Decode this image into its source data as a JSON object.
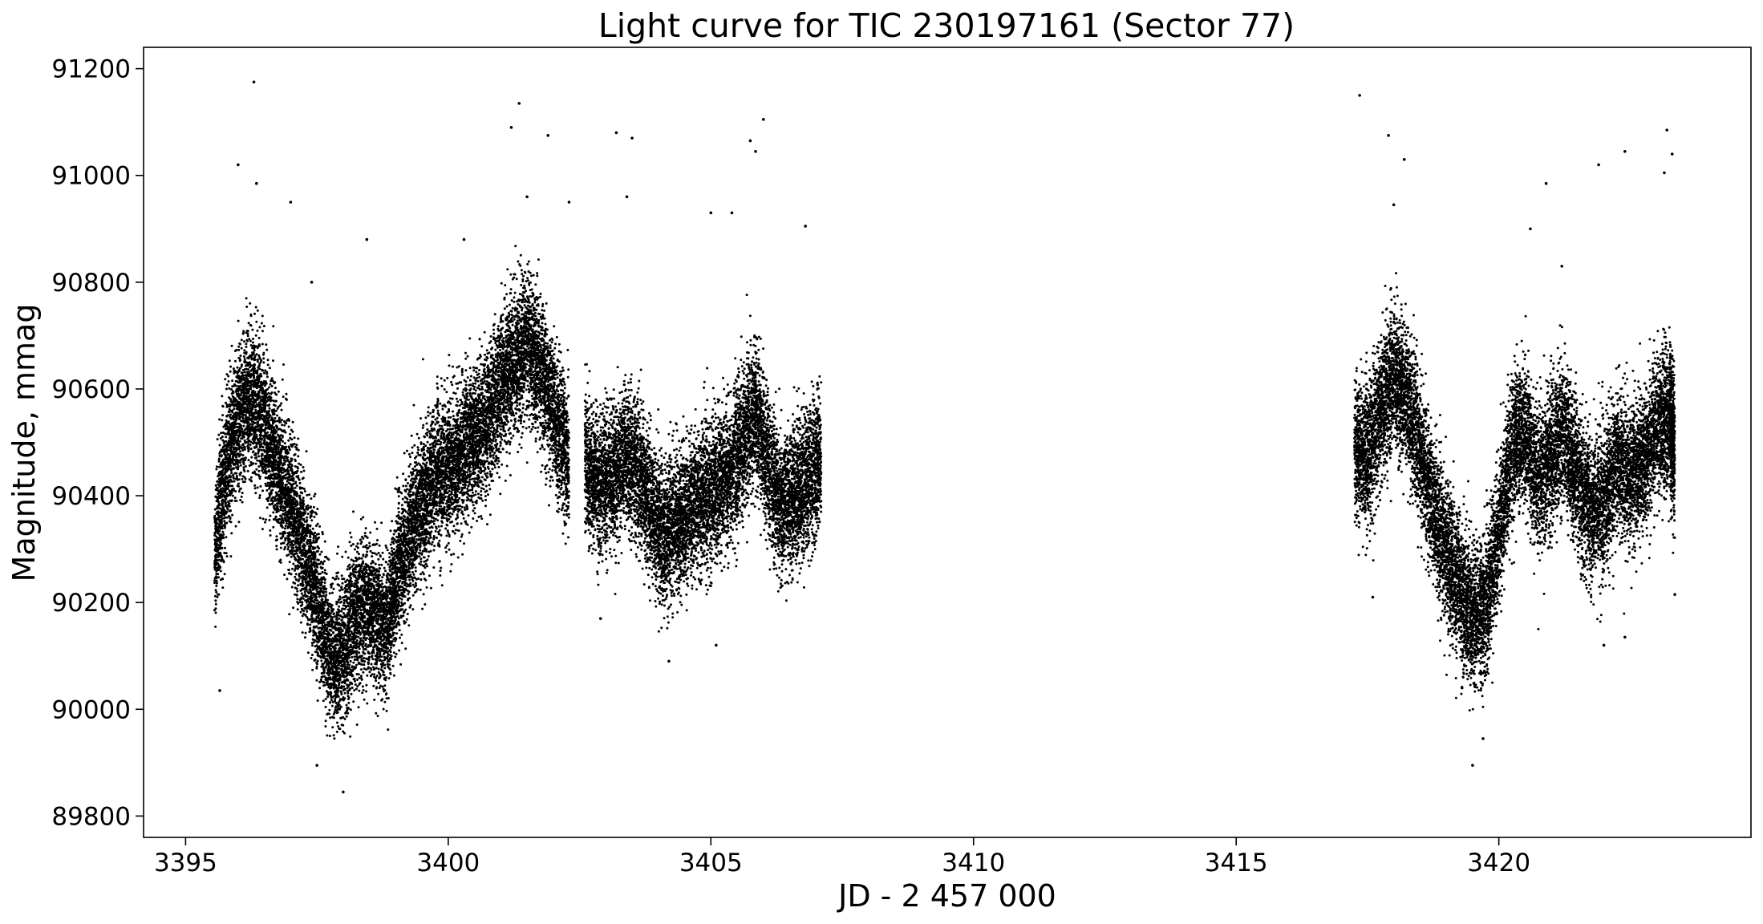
{
  "chart_data": {
    "type": "scatter",
    "title": "Light curve for TIC 230197161 (Sector 77)",
    "xlabel": "JD - 2 457 000",
    "ylabel": "Magnitude, mmag",
    "xlim": [
      3394.2,
      3424.8
    ],
    "ylim": [
      89760,
      91240
    ],
    "xticks": [
      3395,
      3400,
      3405,
      3410,
      3415,
      3420
    ],
    "yticks": [
      89800,
      90000,
      90200,
      90400,
      90600,
      90800,
      91000,
      91200
    ],
    "grid": false,
    "legend": "none",
    "marker_color": "#000000",
    "segments": [
      {
        "x": [
          3395.55,
          3395.8,
          3396.05,
          3396.3,
          3396.55,
          3396.8,
          3397.05,
          3397.3,
          3397.55,
          3397.8,
          3398.05,
          3398.3,
          3398.55,
          3398.8,
          3399.05,
          3399.3,
          3399.55,
          3399.8,
          3400.05,
          3400.3,
          3400.55,
          3400.8,
          3401.05,
          3401.3,
          3401.55,
          3401.8,
          3402.05,
          3402.3
        ],
        "y": [
          90300,
          90470,
          90560,
          90580,
          90520,
          90440,
          90370,
          90280,
          90180,
          90090,
          90120,
          90190,
          90190,
          90150,
          90260,
          90340,
          90390,
          90440,
          90450,
          90480,
          90510,
          90560,
          90610,
          90660,
          90680,
          90620,
          90540,
          90460
        ],
        "spread": 65
      },
      {
        "x": [
          3402.6,
          3402.85,
          3403.1,
          3403.35,
          3403.6,
          3403.85,
          3404.1,
          3404.35,
          3404.6,
          3404.85,
          3405.1,
          3405.35,
          3405.6,
          3405.85,
          3406.1,
          3406.35,
          3406.6,
          3406.85,
          3407.1
        ],
        "y": [
          90460,
          90420,
          90430,
          90470,
          90450,
          90380,
          90330,
          90350,
          90380,
          90400,
          90410,
          90440,
          90500,
          90560,
          90450,
          90380,
          90400,
          90420,
          90470
        ],
        "spread": 65
      },
      {
        "x": [
          3417.25,
          3417.5,
          3417.75,
          3418.0,
          3418.25,
          3418.5,
          3418.75,
          3419.0,
          3419.25,
          3419.5,
          3419.75,
          3420.0,
          3420.25,
          3420.5,
          3420.75,
          3421.0,
          3421.25,
          3421.5,
          3421.75,
          3422.0,
          3422.25,
          3422.5,
          3422.75,
          3423.0,
          3423.25,
          3423.35
        ],
        "y": [
          90500,
          90470,
          90560,
          90620,
          90580,
          90480,
          90380,
          90290,
          90230,
          90170,
          90190,
          90330,
          90500,
          90520,
          90420,
          90480,
          90520,
          90430,
          90370,
          90390,
          90470,
          90430,
          90460,
          90530,
          90540,
          90480
        ],
        "spread": 65
      }
    ],
    "outliers": [
      {
        "x": 3396.3,
        "y": 91175
      },
      {
        "x": 3396.0,
        "y": 91020
      },
      {
        "x": 3396.35,
        "y": 90985
      },
      {
        "x": 3397.0,
        "y": 90950
      },
      {
        "x": 3398.0,
        "y": 89845
      },
      {
        "x": 3397.5,
        "y": 89895
      },
      {
        "x": 3395.65,
        "y": 90035
      },
      {
        "x": 3398.45,
        "y": 90880
      },
      {
        "x": 3397.4,
        "y": 90800
      },
      {
        "x": 3401.2,
        "y": 91090
      },
      {
        "x": 3401.35,
        "y": 91135
      },
      {
        "x": 3401.9,
        "y": 91075
      },
      {
        "x": 3400.3,
        "y": 90880
      },
      {
        "x": 3401.5,
        "y": 90960
      },
      {
        "x": 3402.3,
        "y": 90950
      },
      {
        "x": 3403.2,
        "y": 91080
      },
      {
        "x": 3403.5,
        "y": 91070
      },
      {
        "x": 3403.4,
        "y": 90960
      },
      {
        "x": 3405.0,
        "y": 90930
      },
      {
        "x": 3405.4,
        "y": 90930
      },
      {
        "x": 3405.75,
        "y": 91065
      },
      {
        "x": 3405.85,
        "y": 91045
      },
      {
        "x": 3406.0,
        "y": 91105
      },
      {
        "x": 3406.8,
        "y": 90905
      },
      {
        "x": 3404.2,
        "y": 90090
      },
      {
        "x": 3405.1,
        "y": 90120
      },
      {
        "x": 3402.9,
        "y": 90170
      },
      {
        "x": 3417.35,
        "y": 91150
      },
      {
        "x": 3417.9,
        "y": 91075
      },
      {
        "x": 3418.0,
        "y": 90945
      },
      {
        "x": 3418.2,
        "y": 91030
      },
      {
        "x": 3419.5,
        "y": 89895
      },
      {
        "x": 3419.7,
        "y": 89945
      },
      {
        "x": 3420.6,
        "y": 90900
      },
      {
        "x": 3420.9,
        "y": 90985
      },
      {
        "x": 3421.2,
        "y": 90830
      },
      {
        "x": 3421.9,
        "y": 91020
      },
      {
        "x": 3422.4,
        "y": 91045
      },
      {
        "x": 3422.0,
        "y": 90120
      },
      {
        "x": 3422.4,
        "y": 90135
      },
      {
        "x": 3423.2,
        "y": 91085
      },
      {
        "x": 3423.15,
        "y": 91005
      },
      {
        "x": 3423.3,
        "y": 91040
      },
      {
        "x": 3423.35,
        "y": 90215
      },
      {
        "x": 3419.3,
        "y": 90040
      },
      {
        "x": 3417.6,
        "y": 90210
      }
    ]
  }
}
